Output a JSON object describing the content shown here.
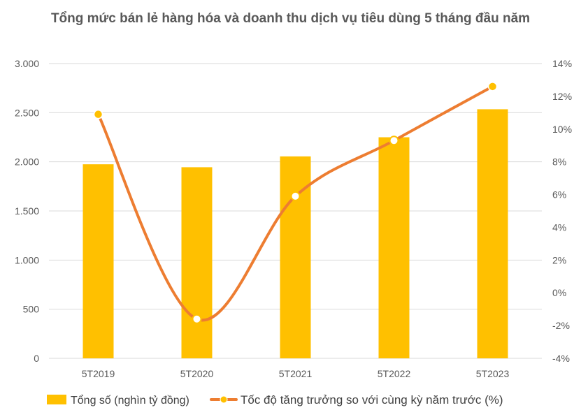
{
  "chart_data": {
    "type": "bar",
    "title": "Tổng mức bán lẻ hàng hóa và doanh thu dịch vụ tiêu dùng 5 tháng đầu năm",
    "categories": [
      "5T2019",
      "5T2020",
      "5T2021",
      "5T2022",
      "5T2023"
    ],
    "series": [
      {
        "name": "Tổng số (nghìn tỷ đồng)",
        "type": "bar",
        "axis": "left",
        "color": "#FFC000",
        "values": [
          1975,
          1945,
          2055,
          2250,
          2535
        ]
      },
      {
        "name": "Tốc độ tăng trưởng so với cùng kỳ năm trước (%)",
        "type": "line",
        "axis": "right",
        "color": "#ED7D31",
        "marker_color": "#FFC000",
        "values": [
          10.9,
          -1.6,
          5.9,
          9.3,
          12.6
        ]
      }
    ],
    "left_axis": {
      "ylim": [
        0,
        3000
      ],
      "ticks": [
        0,
        500,
        1000,
        1500,
        2000,
        2500,
        3000
      ],
      "tick_labels": [
        "0",
        "500",
        "1.000",
        "1.500",
        "2.000",
        "2.500",
        "3.000"
      ]
    },
    "right_axis": {
      "ylim": [
        -4,
        14
      ],
      "ticks": [
        -4,
        -2,
        0,
        2,
        4,
        6,
        8,
        10,
        12,
        14
      ],
      "tick_labels": [
        "-4%",
        "-2%",
        "0%",
        "2%",
        "4%",
        "6%",
        "8%",
        "10%",
        "12%",
        "14%"
      ]
    },
    "grid": true,
    "legend_position": "bottom"
  }
}
